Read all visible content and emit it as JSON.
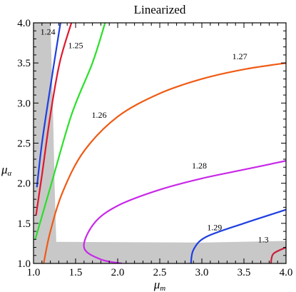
{
  "chart_data": {
    "type": "contour",
    "title": "Linearized",
    "xlabel": {
      "base": "μ",
      "sub": "m"
    },
    "ylabel": {
      "base": "μ",
      "sub": "α"
    },
    "xlim": [
      1.0,
      4.0
    ],
    "ylim": [
      1.0,
      4.0
    ],
    "xticks": [
      "1.0",
      "1.5",
      "2.0",
      "2.5",
      "3.0",
      "3.5",
      "4.0"
    ],
    "yticks": [
      "1.0",
      "1.5",
      "2.0",
      "2.5",
      "3.0",
      "3.5",
      "4.0"
    ],
    "grid": false,
    "shaded_region_color": "#c8c8c8",
    "contours": [
      {
        "level": "1.24",
        "color": "#1f3fe0",
        "points": [
          [
            1.04,
            1.95
          ],
          [
            1.1,
            2.5
          ],
          [
            1.2,
            3.2
          ],
          [
            1.32,
            4.0
          ]
        ],
        "label_at": [
          1.17,
          3.89
        ]
      },
      {
        "level": "1.25",
        "color": "#e0182d",
        "points": [
          [
            1.03,
            1.6
          ],
          [
            1.1,
            2.1
          ],
          [
            1.2,
            2.85
          ],
          [
            1.31,
            3.5
          ],
          [
            1.45,
            4.0
          ]
        ],
        "label_at": [
          1.5,
          3.72
        ]
      },
      {
        "level": "1.26",
        "color": "#28e028",
        "points": [
          [
            1.02,
            1.3
          ],
          [
            1.2,
            1.95
          ],
          [
            1.45,
            2.85
          ],
          [
            1.7,
            3.5
          ],
          [
            1.85,
            4.0
          ]
        ],
        "label_at": [
          1.78,
          2.85
        ]
      },
      {
        "level": "1.27",
        "color": "#f05a14",
        "points": [
          [
            1.12,
            1.0
          ],
          [
            1.2,
            1.4
          ],
          [
            1.35,
            1.9
          ],
          [
            1.6,
            2.4
          ],
          [
            2.0,
            2.83
          ],
          [
            2.5,
            3.12
          ],
          [
            3.0,
            3.3
          ],
          [
            3.5,
            3.42
          ],
          [
            4.0,
            3.5
          ]
        ],
        "label_at": [
          3.45,
          3.58
        ]
      },
      {
        "level": "1.28",
        "color": "#c828e8",
        "points": [
          [
            2.05,
            1.0
          ],
          [
            1.8,
            1.05
          ],
          [
            1.6,
            1.2
          ],
          [
            1.72,
            1.5
          ],
          [
            2.0,
            1.72
          ],
          [
            2.5,
            1.92
          ],
          [
            3.0,
            2.06
          ],
          [
            3.5,
            2.17
          ],
          [
            4.0,
            2.28
          ]
        ],
        "label_at": [
          2.97,
          2.22
        ]
      },
      {
        "level": "1.29",
        "color": "#1f3fe0",
        "points": [
          [
            2.87,
            1.0
          ],
          [
            2.9,
            1.17
          ],
          [
            3.05,
            1.33
          ],
          [
            3.5,
            1.5
          ],
          [
            4.0,
            1.67
          ]
        ],
        "label_at": [
          3.15,
          1.45
        ]
      },
      {
        "level": "1.3",
        "color": "#c81e3c",
        "points": [
          [
            3.82,
            1.0
          ],
          [
            3.85,
            1.12
          ],
          [
            4.0,
            1.2
          ]
        ],
        "label_at": [
          3.73,
          1.3
        ]
      }
    ]
  }
}
